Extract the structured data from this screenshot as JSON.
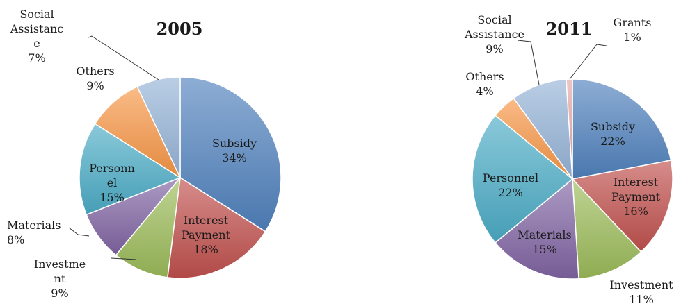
{
  "chart_data": [
    {
      "type": "pie",
      "title": "2005",
      "unit": "%",
      "slices": [
        {
          "name": "Subsidy",
          "label_lines": [
            "Subsidy"
          ],
          "value": 34,
          "color": "#4F81BD"
        },
        {
          "name": "Interest Payment",
          "label_lines": [
            "Interest",
            "Payment"
          ],
          "value": 18,
          "color": "#C0504D"
        },
        {
          "name": "Investment",
          "label_lines": [
            "Investme",
            "nt"
          ],
          "value": 9,
          "color": "#9BBB59"
        },
        {
          "name": "Materials",
          "label_lines": [
            "Materials"
          ],
          "value": 8,
          "color": "#8064A2"
        },
        {
          "name": "Personnel",
          "label_lines": [
            "Personn",
            "el"
          ],
          "value": 15,
          "color": "#4BACC6"
        },
        {
          "name": "Others",
          "label_lines": [
            "Others"
          ],
          "value": 9,
          "color": "#F79646"
        },
        {
          "name": "Social Assistance",
          "label_lines": [
            "Social",
            "Assistanc",
            "e"
          ],
          "value": 7,
          "color": "#95B3D7"
        }
      ]
    },
    {
      "type": "pie",
      "title": "2011",
      "unit": "%",
      "slices": [
        {
          "name": "Subsidy",
          "label_lines": [
            "Subsidy"
          ],
          "value": 22,
          "color": "#4F81BD"
        },
        {
          "name": "Interest Payment",
          "label_lines": [
            "Interest",
            "Payment"
          ],
          "value": 16,
          "color": "#C0504D"
        },
        {
          "name": "Investment",
          "label_lines": [
            "Investment"
          ],
          "value": 11,
          "color": "#9BBB59"
        },
        {
          "name": "Materials",
          "label_lines": [
            "Materials"
          ],
          "value": 15,
          "color": "#8064A2"
        },
        {
          "name": "Personnel",
          "label_lines": [
            "Personnel"
          ],
          "value": 22,
          "color": "#4BACC6"
        },
        {
          "name": "Others",
          "label_lines": [
            "Others"
          ],
          "value": 4,
          "color": "#F79646"
        },
        {
          "name": "Social Assistance",
          "label_lines": [
            "Social",
            "Assistance"
          ],
          "value": 9,
          "color": "#95B3D7"
        },
        {
          "name": "Grants",
          "label_lines": [
            "Grants"
          ],
          "value": 1,
          "color": "#E6A5A4"
        }
      ]
    }
  ]
}
